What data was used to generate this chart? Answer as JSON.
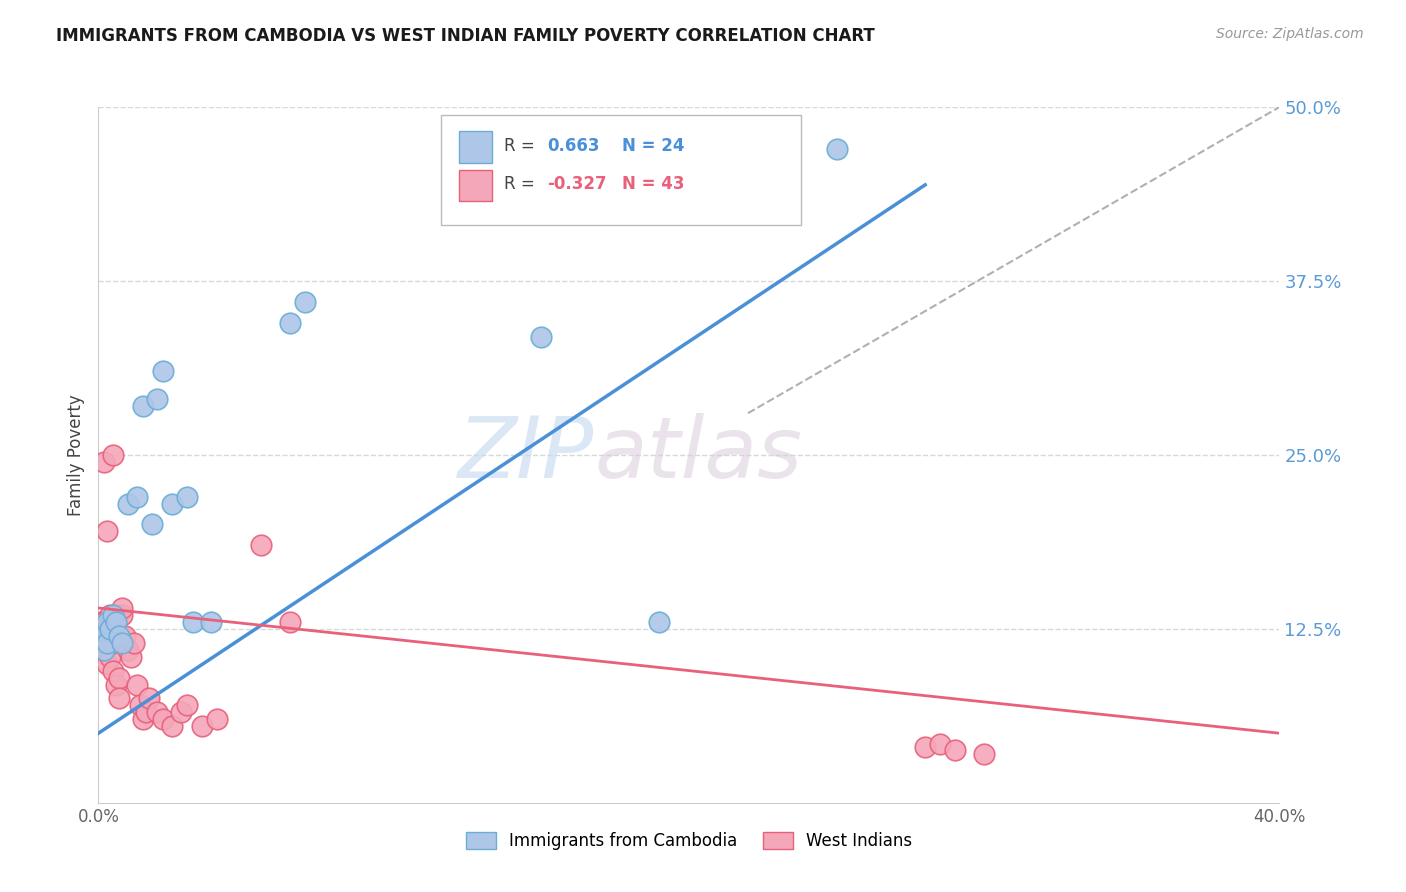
{
  "title": "IMMIGRANTS FROM CAMBODIA VS WEST INDIAN FAMILY POVERTY CORRELATION CHART",
  "source": "Source: ZipAtlas.com",
  "ylabel": "Family Poverty",
  "legend_label_1": "Immigrants from Cambodia",
  "legend_label_2": "West Indians",
  "r1_text": "0.663",
  "n1_text": "24",
  "r2_text": "-0.327",
  "n2_text": "43",
  "color_cambodia_fill": "#aec6e8",
  "color_cambodia_edge": "#6aaed6",
  "color_westindian_fill": "#f4a7b9",
  "color_westindian_edge": "#e8607a",
  "color_line_cambodia": "#4a90d9",
  "color_line_westindian": "#e8607a",
  "color_trendline_dashed": "#b0b0b0",
  "color_grid": "#d8d8d8",
  "color_right_labels": "#5b9bd5",
  "xlim": [
    0.0,
    0.4
  ],
  "ylim": [
    0.0,
    0.5
  ],
  "xticks": [
    0.0,
    0.1,
    0.2,
    0.3,
    0.4
  ],
  "xticklabels": [
    "0.0%",
    "",
    "",
    "",
    "40.0%"
  ],
  "ytick_right": [
    0.0,
    0.125,
    0.25,
    0.375,
    0.5
  ],
  "ytick_right_labels": [
    "",
    "12.5%",
    "25.0%",
    "37.5%",
    "50.0%"
  ],
  "watermark_zip": "ZIP",
  "watermark_atlas": "atlas",
  "cambodia_x": [
    0.001,
    0.002,
    0.003,
    0.003,
    0.004,
    0.005,
    0.006,
    0.007,
    0.008,
    0.01,
    0.013,
    0.015,
    0.018,
    0.02,
    0.022,
    0.025,
    0.03,
    0.032,
    0.038,
    0.065,
    0.07,
    0.15,
    0.19,
    0.25
  ],
  "cambodia_y": [
    0.12,
    0.11,
    0.115,
    0.13,
    0.125,
    0.135,
    0.13,
    0.12,
    0.115,
    0.215,
    0.22,
    0.285,
    0.2,
    0.29,
    0.31,
    0.215,
    0.22,
    0.13,
    0.13,
    0.345,
    0.36,
    0.335,
    0.13,
    0.47
  ],
  "westindian_x": [
    0.001,
    0.001,
    0.001,
    0.002,
    0.002,
    0.002,
    0.003,
    0.003,
    0.003,
    0.004,
    0.004,
    0.004,
    0.005,
    0.005,
    0.005,
    0.006,
    0.006,
    0.007,
    0.007,
    0.008,
    0.008,
    0.009,
    0.01,
    0.011,
    0.012,
    0.013,
    0.014,
    0.015,
    0.016,
    0.017,
    0.02,
    0.022,
    0.025,
    0.028,
    0.03,
    0.035,
    0.04,
    0.055,
    0.065,
    0.28,
    0.285,
    0.29,
    0.3
  ],
  "westindian_y": [
    0.13,
    0.12,
    0.115,
    0.245,
    0.13,
    0.11,
    0.125,
    0.195,
    0.1,
    0.135,
    0.12,
    0.105,
    0.25,
    0.115,
    0.095,
    0.085,
    0.13,
    0.09,
    0.075,
    0.135,
    0.14,
    0.12,
    0.11,
    0.105,
    0.115,
    0.085,
    0.07,
    0.06,
    0.065,
    0.075,
    0.065,
    0.06,
    0.055,
    0.065,
    0.07,
    0.055,
    0.06,
    0.185,
    0.13,
    0.04,
    0.042,
    0.038,
    0.035
  ]
}
